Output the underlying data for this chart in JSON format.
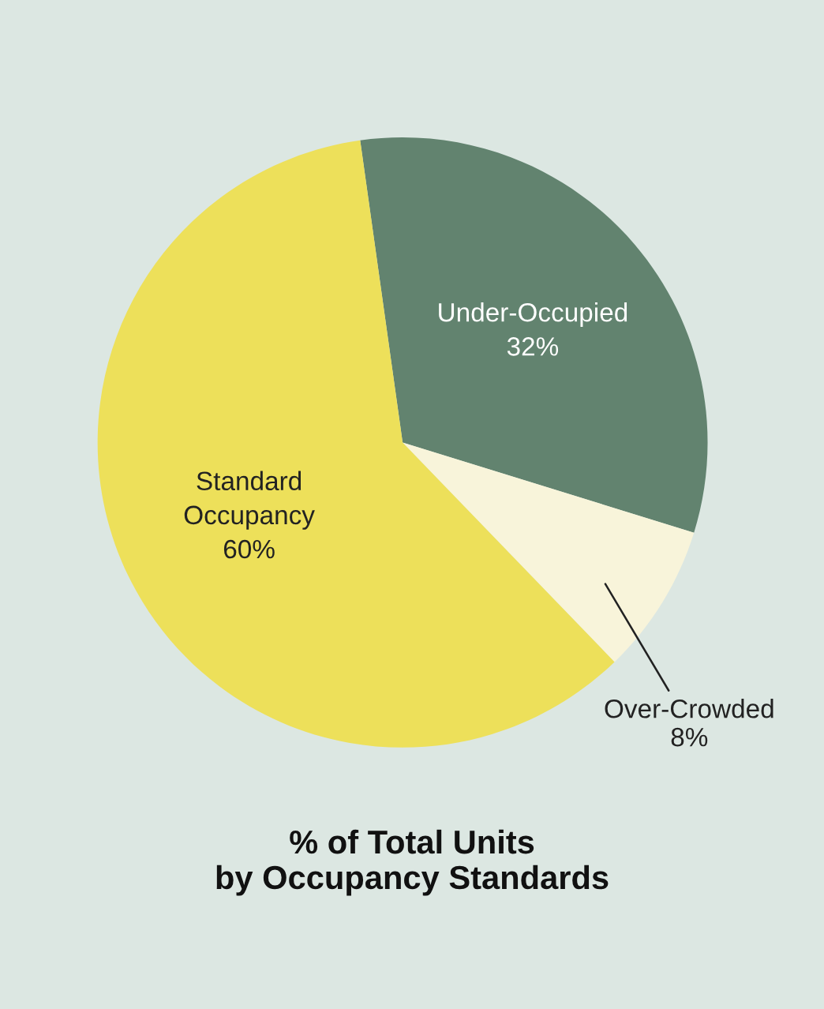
{
  "chart_data": {
    "type": "pie",
    "title": "% of Total Units\nby Occupancy Standards",
    "categories": [
      "Under-Occupied",
      "Over-Crowded",
      "Standard\nOccupancy"
    ],
    "values": [
      32,
      8,
      60
    ],
    "colors": [
      "#62836f",
      "#f8f4da",
      "#ede05a"
    ],
    "value_labels": [
      "32%",
      "8%",
      "60%"
    ]
  }
}
